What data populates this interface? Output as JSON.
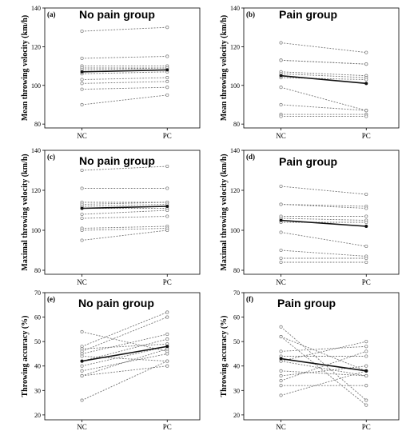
{
  "chart_data": [
    {
      "type": "line",
      "panel": "(a)",
      "title": "No pain group",
      "categories": [
        "NC",
        "PC"
      ],
      "ylabel": "Mean throwing velocity (km/h)",
      "ylim": [
        78,
        140
      ],
      "yticks": [
        80,
        100,
        120,
        140
      ],
      "subjects": [
        [
          128,
          130
        ],
        [
          114,
          115
        ],
        [
          110,
          110
        ],
        [
          109,
          109
        ],
        [
          108,
          109
        ],
        [
          106,
          107
        ],
        [
          103,
          104
        ],
        [
          101,
          102
        ],
        [
          98,
          99
        ],
        [
          90,
          95
        ]
      ],
      "mean": [
        107,
        108
      ]
    },
    {
      "type": "line",
      "panel": "(b)",
      "title": "Pain group",
      "categories": [
        "NC",
        "PC"
      ],
      "ylabel": "Mean throwing velocity (km/h)",
      "ylim": [
        78,
        140
      ],
      "yticks": [
        80,
        100,
        120,
        140
      ],
      "subjects": [
        [
          122,
          117
        ],
        [
          113,
          111
        ],
        [
          113,
          111
        ],
        [
          107,
          105
        ],
        [
          106,
          104
        ],
        [
          104,
          103
        ],
        [
          99,
          87
        ],
        [
          90,
          87
        ],
        [
          85,
          85
        ],
        [
          84,
          84
        ]
      ],
      "mean": [
        105,
        101
      ]
    },
    {
      "type": "line",
      "panel": "(c)",
      "title": "No pain group",
      "categories": [
        "NC",
        "PC"
      ],
      "ylabel": "Maximal throwing velocity (km/h)",
      "ylim": [
        78,
        140
      ],
      "yticks": [
        80,
        100,
        120,
        140
      ],
      "subjects": [
        [
          130,
          132
        ],
        [
          121,
          121
        ],
        [
          114,
          114
        ],
        [
          113,
          114
        ],
        [
          112,
          113
        ],
        [
          111,
          111
        ],
        [
          108,
          110
        ],
        [
          106,
          107
        ],
        [
          101,
          102
        ],
        [
          100,
          101
        ],
        [
          95,
          100
        ]
      ],
      "mean": [
        111,
        112
      ]
    },
    {
      "type": "line",
      "panel": "(d)",
      "title": "Pain group",
      "categories": [
        "NC",
        "PC"
      ],
      "ylabel": "Maximal throwing velocity (km/h)",
      "ylim": [
        78,
        140
      ],
      "yticks": [
        80,
        100,
        120,
        140
      ],
      "subjects": [
        [
          122,
          118
        ],
        [
          113,
          112
        ],
        [
          113,
          111
        ],
        [
          107,
          107
        ],
        [
          106,
          105
        ],
        [
          104,
          104
        ],
        [
          99,
          92
        ],
        [
          90,
          87
        ],
        [
          86,
          86
        ],
        [
          84,
          84
        ]
      ],
      "mean": [
        105,
        102
      ]
    },
    {
      "type": "line",
      "panel": "(e)",
      "title": "No pain group",
      "categories": [
        "NC",
        "PC"
      ],
      "ylabel": "Throwing accuracy (%)",
      "ylim": [
        18,
        70
      ],
      "yticks": [
        20,
        30,
        40,
        50,
        60,
        70
      ],
      "subjects": [
        [
          54,
          46
        ],
        [
          48,
          62
        ],
        [
          47,
          49
        ],
        [
          46,
          60
        ],
        [
          45,
          53
        ],
        [
          44,
          42
        ],
        [
          42,
          51
        ],
        [
          40,
          48
        ],
        [
          38,
          45
        ],
        [
          36,
          47
        ],
        [
          36,
          40
        ],
        [
          26,
          42
        ]
      ],
      "mean": [
        42,
        48
      ]
    },
    {
      "type": "line",
      "panel": "(f)",
      "title": "Pain group",
      "categories": [
        "NC",
        "PC"
      ],
      "ylabel": "Throwing accuracy (%)",
      "ylim": [
        18,
        70
      ],
      "yticks": [
        20,
        30,
        40,
        50,
        60,
        70
      ],
      "subjects": [
        [
          56,
          26
        ],
        [
          52,
          24
        ],
        [
          52,
          38
        ],
        [
          46,
          48
        ],
        [
          44,
          44
        ],
        [
          42,
          50
        ],
        [
          42,
          36
        ],
        [
          38,
          36
        ],
        [
          36,
          40
        ],
        [
          34,
          46
        ],
        [
          32,
          32
        ],
        [
          28,
          38
        ]
      ],
      "mean": [
        43,
        38
      ]
    }
  ]
}
